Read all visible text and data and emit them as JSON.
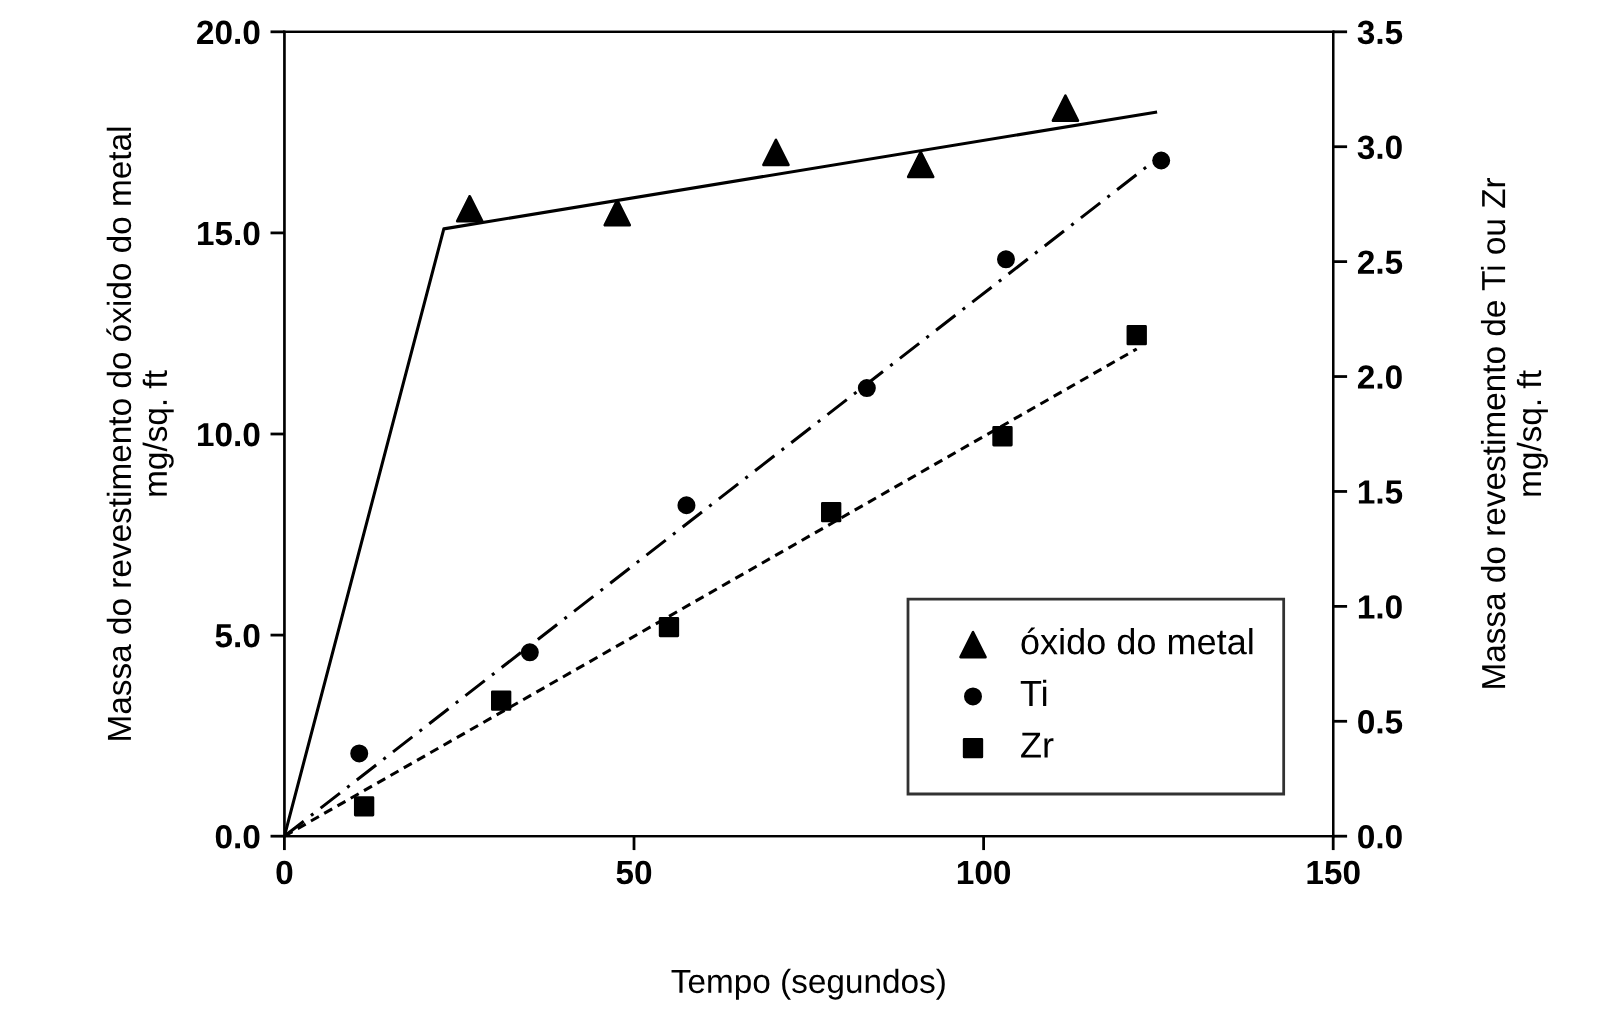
{
  "chart_data": {
    "type": "scatter",
    "xlabel": "Tempo (segundos)",
    "ylabel": "Massa do revestimento do óxido do metal\nmg/sq. ft",
    "y2label": "Massa do revestimento de Ti ou Zr\nmg/sq. ft",
    "xlim": [
      0,
      150
    ],
    "xticks": [
      0,
      50,
      100,
      150
    ],
    "ylim": [
      0,
      20
    ],
    "yticks": [
      {
        "value": 0,
        "label": "0.0"
      },
      {
        "value": 5,
        "label": "5.0"
      },
      {
        "value": 10,
        "label": "10.0"
      },
      {
        "value": 15,
        "label": "15.0"
      },
      {
        "value": 20,
        "label": "20.0"
      }
    ],
    "y2lim": [
      0,
      3.5
    ],
    "y2ticks": [
      {
        "value": 0,
        "label": "0.0"
      },
      {
        "value": 0.5,
        "label": "0.5"
      },
      {
        "value": 1,
        "label": "1.0"
      },
      {
        "value": 1.5,
        "label": "1.5"
      },
      {
        "value": 2,
        "label": "2.0"
      },
      {
        "value": 2.5,
        "label": "2.5"
      },
      {
        "value": 3,
        "label": "3.0"
      },
      {
        "value": 3.5,
        "label": "3.5"
      }
    ],
    "grid": false,
    "legend": "bottom right",
    "series": [
      {
        "name": "óxido do metal",
        "marker": "triangle",
        "color": "#000000",
        "x": [
          26.5,
          47.6,
          70.3,
          91.0,
          111.7
        ],
        "values": [
          15.6,
          15.5,
          17.0,
          16.7,
          18.1
        ]
      },
      {
        "name": "Ti",
        "marker": "circle",
        "color": "#000000",
        "axis": "y2",
        "x": [
          10.7,
          35.1,
          57.5,
          83.3,
          103.2,
          125.4
        ],
        "values": [
          0.36,
          0.8,
          1.44,
          1.95,
          2.51,
          2.94
        ]
      },
      {
        "name": "Zr",
        "marker": "square",
        "color": "#000000",
        "axis": "y2",
        "x": [
          11.4,
          31.0,
          55.0,
          78.2,
          102.7,
          121.9
        ],
        "values": [
          0.13,
          0.59,
          0.91,
          1.41,
          1.74,
          2.18
        ]
      },
      {
        "type": "line",
        "line_style": "solid",
        "color": "#000000",
        "x": [
          0,
          22.8,
          124.6
        ],
        "values": [
          0,
          15.1,
          18.0
        ]
      },
      {
        "type": "line",
        "line_style": "dashdot",
        "color": "#000000",
        "axis": "y2",
        "x": [
          0,
          124.9
        ],
        "values": [
          0,
          2.95
        ]
      },
      {
        "type": "line",
        "line_style": "dashed",
        "color": "#000000",
        "axis": "y2",
        "x": [
          0,
          121.9
        ],
        "values": [
          0,
          2.12
        ]
      }
    ]
  }
}
